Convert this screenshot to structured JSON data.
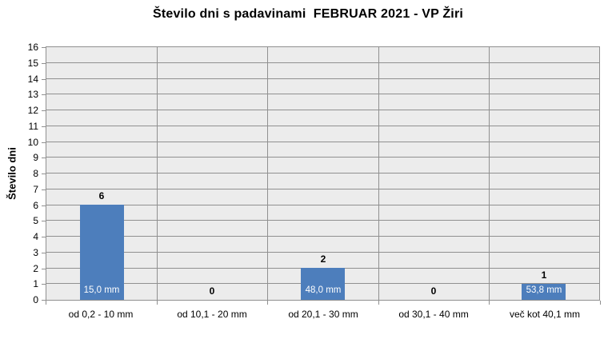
{
  "chart_data": {
    "type": "bar",
    "title": "Število dni s padavinami  FEBRUAR 2021 - VP Žiri",
    "ylabel": "Število dni",
    "xlabel": "",
    "categories": [
      "od 0,2 - 10 mm",
      "od 10,1 - 20 mm",
      "od 20,1 - 30 mm",
      "od 30,1 - 40 mm",
      "več kot 40,1 mm"
    ],
    "values": [
      6,
      0,
      2,
      0,
      1
    ],
    "value_labels": [
      "6",
      "0",
      "2",
      "0",
      "1"
    ],
    "inside_labels": [
      "15,0 mm",
      "",
      "48,0 mm",
      "",
      "53,8 mm"
    ],
    "ylim": [
      0,
      16
    ],
    "ytick_step": 1,
    "grid": true,
    "legend_position": "none",
    "colors": {
      "bar": "#4D7EBC",
      "plot_background": "#ECECEC",
      "gridline": "#909090",
      "inside_label_text": "#FFFFFF",
      "text": "#000000",
      "background": "#FFFFFF"
    }
  }
}
